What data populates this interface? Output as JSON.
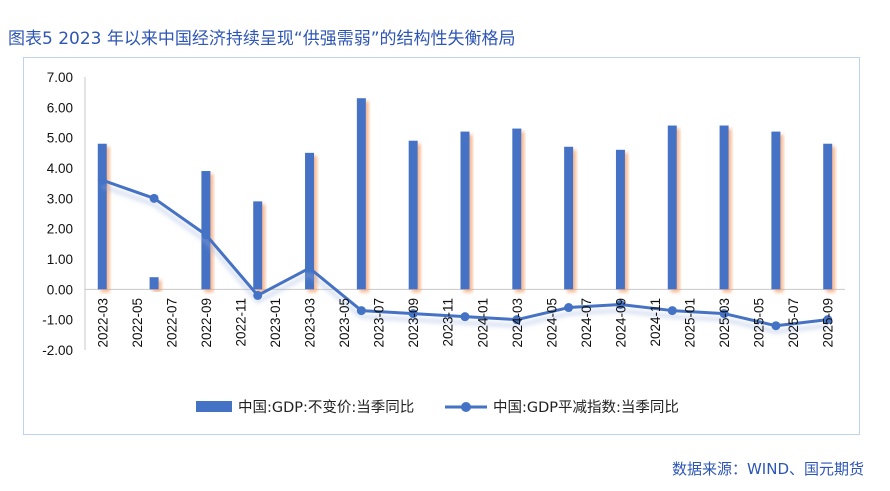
{
  "figure": {
    "title": "图表5 2023 年以来中国经济持续呈现“供强需弱”的结构性失衡格局",
    "source": "数据来源：WIND、国元期货"
  },
  "colors": {
    "bar": "#4472c4",
    "line": "#4472c4",
    "title": "#2e56b6"
  },
  "chart_data": {
    "type": "bar",
    "x_tick_labels": [
      "2022-03",
      "2022-05",
      "2022-07",
      "2022-09",
      "2022-11",
      "2023-01",
      "2023-03",
      "2023-05",
      "2023-07",
      "2023-09",
      "2023-11",
      "2024-01",
      "2024-03",
      "2024-05",
      "2024-07",
      "2024-09",
      "2024-11",
      "2025-01",
      "2025-03",
      "2025-05",
      "2025-07",
      "2025-09"
    ],
    "categories": [
      "2022-03",
      "2022-06",
      "2022-09",
      "2022-12",
      "2023-03",
      "2023-06",
      "2023-09",
      "2023-12",
      "2024-03",
      "2024-06",
      "2024-09",
      "2024-12",
      "2025-03",
      "2025-06",
      "2025-09"
    ],
    "series": [
      {
        "name": "中国:GDP:不变价:当季同比",
        "type": "bar",
        "values": [
          4.8,
          0.4,
          3.9,
          2.9,
          4.5,
          6.3,
          4.9,
          5.2,
          5.3,
          4.7,
          4.6,
          5.4,
          5.4,
          5.2,
          4.8
        ]
      },
      {
        "name": "中国:GDP平减指数:当季同比",
        "type": "line",
        "values": [
          3.6,
          3.0,
          1.8,
          -0.2,
          0.7,
          -0.7,
          -0.8,
          -0.9,
          -1.0,
          -0.6,
          -0.5,
          -0.7,
          -0.8,
          -1.2,
          -1.0
        ]
      }
    ],
    "y_tick_labels": [
      "7.00",
      "6.00",
      "5.00",
      "4.00",
      "3.00",
      "2.00",
      "1.00",
      "0.00",
      "-1.00",
      "-2.00"
    ],
    "ylim": [
      -2,
      7
    ],
    "grid": false,
    "legend": "bottom"
  }
}
